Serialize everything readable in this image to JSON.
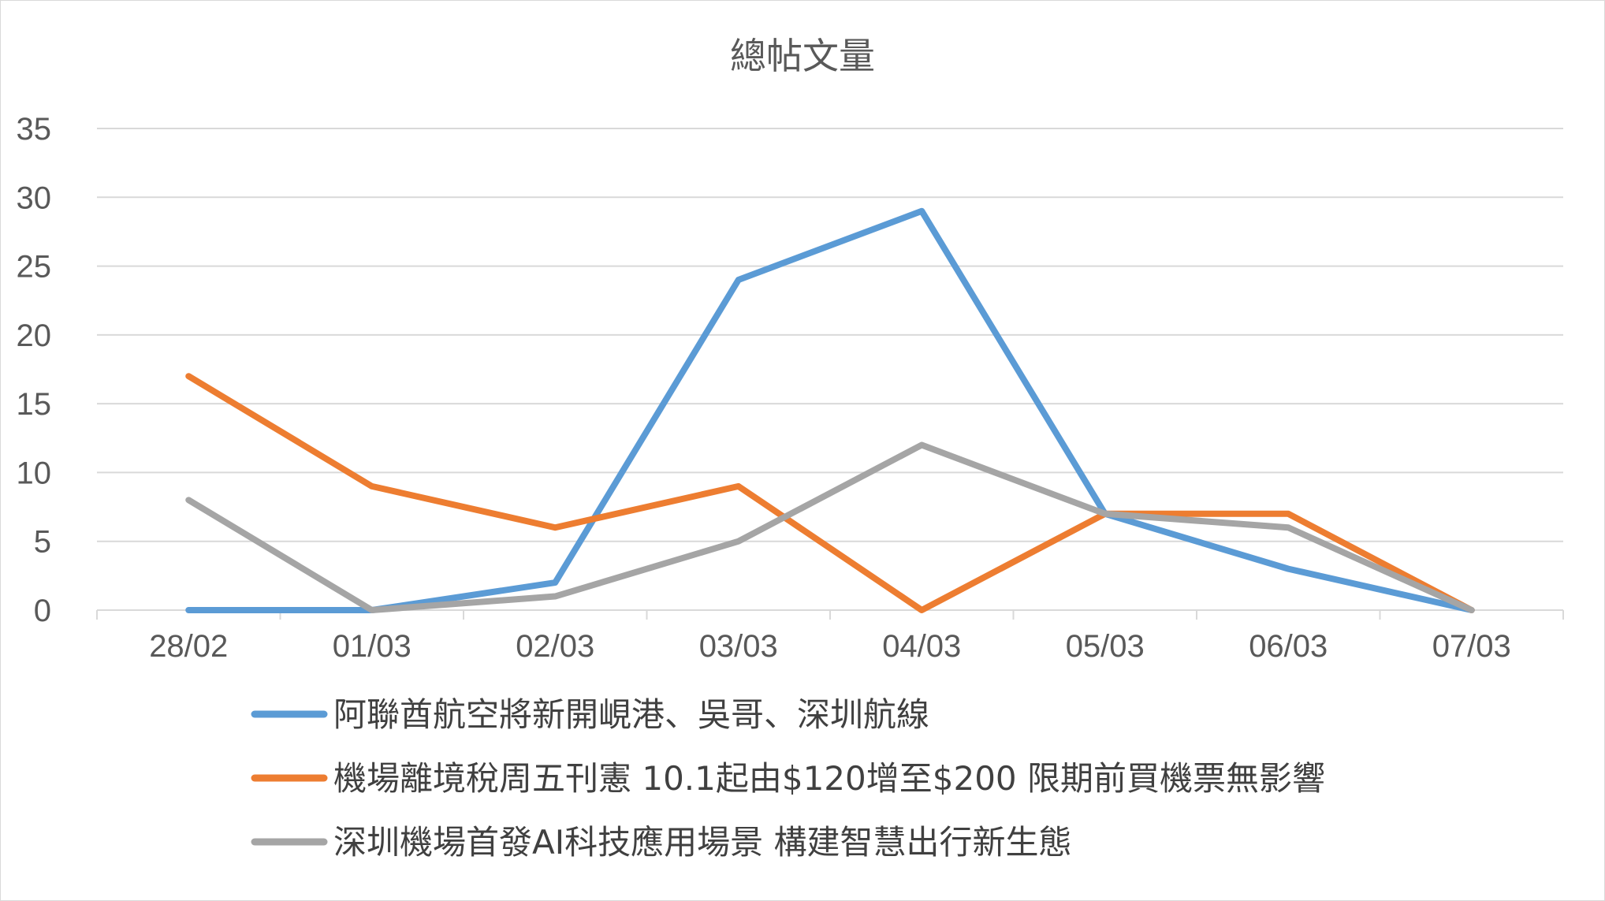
{
  "chart_data": {
    "type": "line",
    "title": "總帖文量",
    "categories": [
      "28/02",
      "01/03",
      "02/03",
      "03/03",
      "04/03",
      "05/03",
      "06/03",
      "07/03"
    ],
    "ylim": [
      0,
      35
    ],
    "yticks": [
      0,
      5,
      10,
      15,
      20,
      25,
      30,
      35
    ],
    "grid": true,
    "legend_position": "bottom",
    "series": [
      {
        "name": "阿聯酋航空將新開峴港、吳哥、深圳航線",
        "color": "#5b9bd5",
        "values": [
          0,
          0,
          2,
          24,
          29,
          7,
          3,
          0
        ]
      },
      {
        "name": "機場離境稅周五刊憲 10.1起由$120增至$200 限期前買機票無影響",
        "color": "#ed7d31",
        "values": [
          17,
          9,
          6,
          9,
          0,
          7,
          7,
          0
        ]
      },
      {
        "name": "深圳機場首發AI科技應用場景 構建智慧出行新生態",
        "color": "#a5a5a5",
        "values": [
          8,
          0,
          1,
          5,
          12,
          7,
          6,
          0
        ]
      }
    ]
  }
}
